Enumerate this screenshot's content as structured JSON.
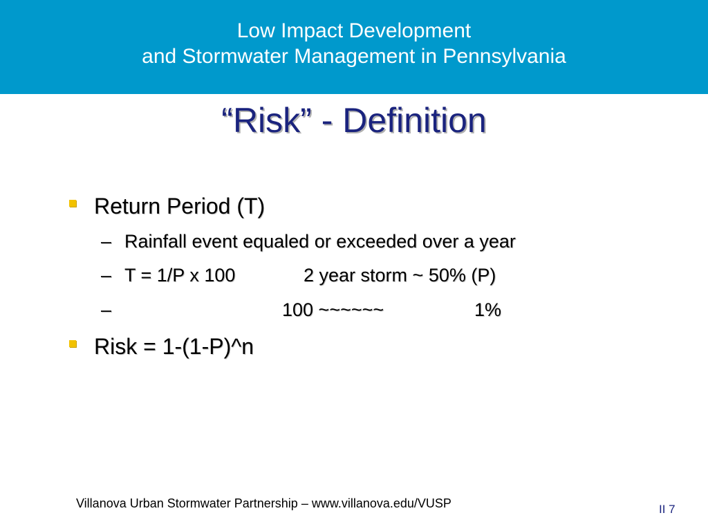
{
  "header": {
    "line1": "Low Impact Development",
    "line2": "and Stormwater Management in Pennsylvania"
  },
  "slide": {
    "title": "“Risk” - Definition",
    "bullets": [
      {
        "text": "Return Period (T)",
        "sub": [
          {
            "dash": "–",
            "text": "Rainfall event equaled or exceeded over a year"
          },
          {
            "dash": "–",
            "col1": "T = 1/P x 100",
            "col2": "2 year storm ~ 50% (P)"
          },
          {
            "dash": "–",
            "col1": "100  ~~~~~~",
            "col2": "1%"
          }
        ]
      },
      {
        "text": "Risk = 1-(1-P)^n"
      }
    ]
  },
  "footer": {
    "credit": "Villanova Urban Stormwater Partnership – www.villanova.edu/VUSP",
    "page": "II 7"
  },
  "colors": {
    "banner": "#0099cc",
    "title": "#1a237e",
    "bullet": "#f2c200"
  }
}
